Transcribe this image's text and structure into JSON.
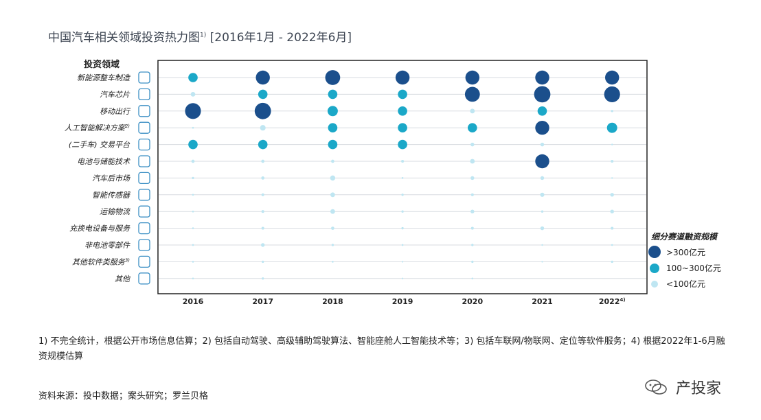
{
  "title": "中国汽车相关领域投资热力图",
  "title_note": "1)",
  "title_period": " [2016年1月 - 2022年6月]",
  "y_header": "投资领域",
  "legend": {
    "title": "细分赛道融资规模",
    "items": [
      {
        "label": ">300亿元",
        "level": 3,
        "color": "#1b4f8c"
      },
      {
        "label": "100~300亿元",
        "level": 2,
        "color": "#1ba8c8"
      },
      {
        "label": "<100亿元",
        "level": 1,
        "color": "#bfe6f2"
      }
    ]
  },
  "footnote": "1) 不完全统计，根据公开市场信息估算；2) 包括自动驾驶、高级辅助驾驶算法、智能座舱人工智能技术等；3) 包括车联网/物联网、定位等软件服务；4) 根据2022年1-6月融资规模估算",
  "source": "资料来源：投中数据；案头研究；罗兰贝格",
  "watermark": "产投家",
  "chart_data": {
    "type": "bubble-heatmap",
    "x": [
      "2016",
      "2017",
      "2018",
      "2019",
      "2020",
      "2021",
      "2022"
    ],
    "x_notes": [
      "",
      "",
      "",
      "",
      "",
      "",
      "4)"
    ],
    "categories": [
      {
        "label": "新能源整车制造",
        "icon": "car-icon"
      },
      {
        "label": "汽车芯片",
        "icon": "chip-icon"
      },
      {
        "label": "移动出行",
        "icon": "mobility-icon"
      },
      {
        "label": "人工智能解决方案",
        "note": "2)",
        "icon": "ai-icon"
      },
      {
        "label": "(二手车) 交易平台",
        "icon": "laptop-icon"
      },
      {
        "label": "电池与储能技术",
        "icon": "battery-icon"
      },
      {
        "label": "汽车后市场",
        "icon": "aftermarket-icon"
      },
      {
        "label": "智能传感器",
        "icon": "sensor-icon"
      },
      {
        "label": "运输物流",
        "icon": "truck-icon"
      },
      {
        "label": "充换电设备与服务",
        "icon": "charging-icon"
      },
      {
        "label": "非电池零部件",
        "icon": "wheel-icon"
      },
      {
        "label": "其他软件类服务",
        "note": "3)",
        "icon": "software-icon"
      },
      {
        "label": "其他",
        "icon": "other-icon"
      }
    ],
    "values": [
      [
        2.0,
        3.0,
        3.2,
        3.0,
        3.0,
        3.0,
        3.0
      ],
      [
        1.0,
        2.0,
        2.0,
        2.0,
        3.2,
        3.5,
        3.4
      ],
      [
        3.4,
        3.5,
        2.2,
        2.0,
        1.0,
        2.0,
        0.5
      ],
      [
        0.4,
        1.2,
        2.0,
        2.0,
        2.0,
        3.0,
        2.2
      ],
      [
        2.0,
        2.0,
        2.0,
        2.0,
        0.8,
        0.8,
        0.2
      ],
      [
        0.7,
        0.7,
        0.7,
        0.6,
        1.0,
        3.0,
        0.6
      ],
      [
        0.5,
        0.7,
        1.1,
        0.4,
        0.8,
        0.8,
        0.3
      ],
      [
        0.4,
        0.6,
        1.0,
        0.5,
        0.6,
        0.9,
        0.8
      ],
      [
        0.4,
        0.6,
        1.0,
        0.5,
        0.8,
        0.5,
        0.8
      ],
      [
        0.4,
        0.6,
        0.7,
        0.5,
        0.6,
        0.8,
        0.6
      ],
      [
        0.4,
        0.8,
        0.5,
        0.4,
        0.5,
        0.3,
        0.4
      ],
      [
        0.4,
        0.5,
        0.4,
        0.3,
        0.5,
        0.3,
        0.5
      ],
      [
        0.4,
        0.5,
        0.0,
        0.3,
        0.4,
        0.0,
        0.0
      ]
    ],
    "grid": true
  }
}
